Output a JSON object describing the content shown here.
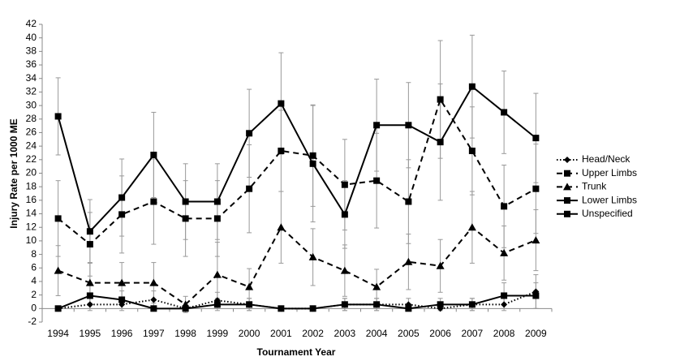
{
  "chart_data": {
    "type": "line",
    "x_label": "Tournament Year",
    "y_label": "Injury Rate per 1000 ME",
    "categories": [
      "1994",
      "1995",
      "1996",
      "1997",
      "1998",
      "1999",
      "2000",
      "2001",
      "2002",
      "2003",
      "2004",
      "2005",
      "2006",
      "2007",
      "2008",
      "2009"
    ],
    "ylim": [
      -2,
      42
    ],
    "yticks": [
      -2,
      0,
      2,
      4,
      6,
      8,
      10,
      12,
      14,
      16,
      18,
      20,
      22,
      24,
      26,
      28,
      30,
      32,
      34,
      36,
      38,
      40,
      42
    ],
    "grid": false,
    "legend": "right",
    "series": [
      {
        "name": "Head/Neck",
        "color": "#000000",
        "dash": "dotted",
        "marker": "diamond",
        "values": [
          0,
          0.6,
          0.6,
          1.3,
          0,
          1.2,
          0.6,
          0,
          0,
          0.6,
          0.6,
          0.6,
          0,
          0.6,
          0.6,
          2.5
        ],
        "errors": [
          0,
          0.9,
          0.9,
          1.3,
          0,
          1.2,
          0.9,
          0,
          0,
          0.9,
          0.9,
          0.9,
          0,
          0.9,
          0.9,
          2.5
        ]
      },
      {
        "name": "Upper Limbs",
        "color": "#000000",
        "dash": "dashed",
        "marker": "square",
        "values": [
          13.3,
          9.5,
          13.9,
          15.8,
          13.3,
          13.3,
          17.7,
          23.3,
          22.6,
          18.3,
          18.9,
          15.8,
          30.9,
          23.3,
          15.1,
          17.7
        ],
        "errors": [
          5.6,
          4.7,
          5.7,
          6.3,
          5.6,
          5.6,
          6.5,
          6.0,
          7.5,
          6.7,
          7.0,
          6.2,
          8.7,
          6.5,
          6.1,
          6.6
        ]
      },
      {
        "name": "Trunk",
        "color": "#000000",
        "dash": "dashed",
        "marker": "triangle",
        "values": [
          5.6,
          3.8,
          3.8,
          3.8,
          0.6,
          5.0,
          3.2,
          12.0,
          7.6,
          5.6,
          3.2,
          6.9,
          6.3,
          12.0,
          8.2,
          10.1
        ],
        "errors": [
          3.7,
          3.0,
          3.0,
          3.0,
          1.2,
          4.8,
          2.7,
          5.3,
          4.2,
          3.8,
          2.6,
          4.1,
          3.9,
          5.3,
          4.0,
          4.5
        ]
      },
      {
        "name": "Lower Limbs",
        "color": "#000000",
        "dash": "solid",
        "marker": "square",
        "values": [
          28.4,
          11.4,
          16.4,
          22.7,
          15.8,
          15.8,
          25.9,
          30.3,
          21.4,
          13.9,
          27.1,
          27.1,
          24.6,
          32.8,
          29.0,
          25.2
        ],
        "errors": [
          5.7,
          4.7,
          5.7,
          6.3,
          5.6,
          5.6,
          6.5,
          7.5,
          8.6,
          5.0,
          6.8,
          6.3,
          8.6,
          7.6,
          6.1,
          6.6
        ]
      },
      {
        "name": "Unspecified",
        "color": "#000000",
        "dash": "solid",
        "marker": "square",
        "values": [
          0,
          1.9,
          1.3,
          0,
          0,
          0.6,
          0.6,
          0,
          0,
          0.6,
          0.6,
          0,
          0.6,
          0.6,
          1.9,
          1.9
        ],
        "errors": [
          0,
          1.9,
          1.3,
          0,
          0,
          0.9,
          0.9,
          0,
          0,
          0.9,
          0.9,
          0,
          0.9,
          0.9,
          1.9,
          1.9
        ]
      }
    ]
  }
}
